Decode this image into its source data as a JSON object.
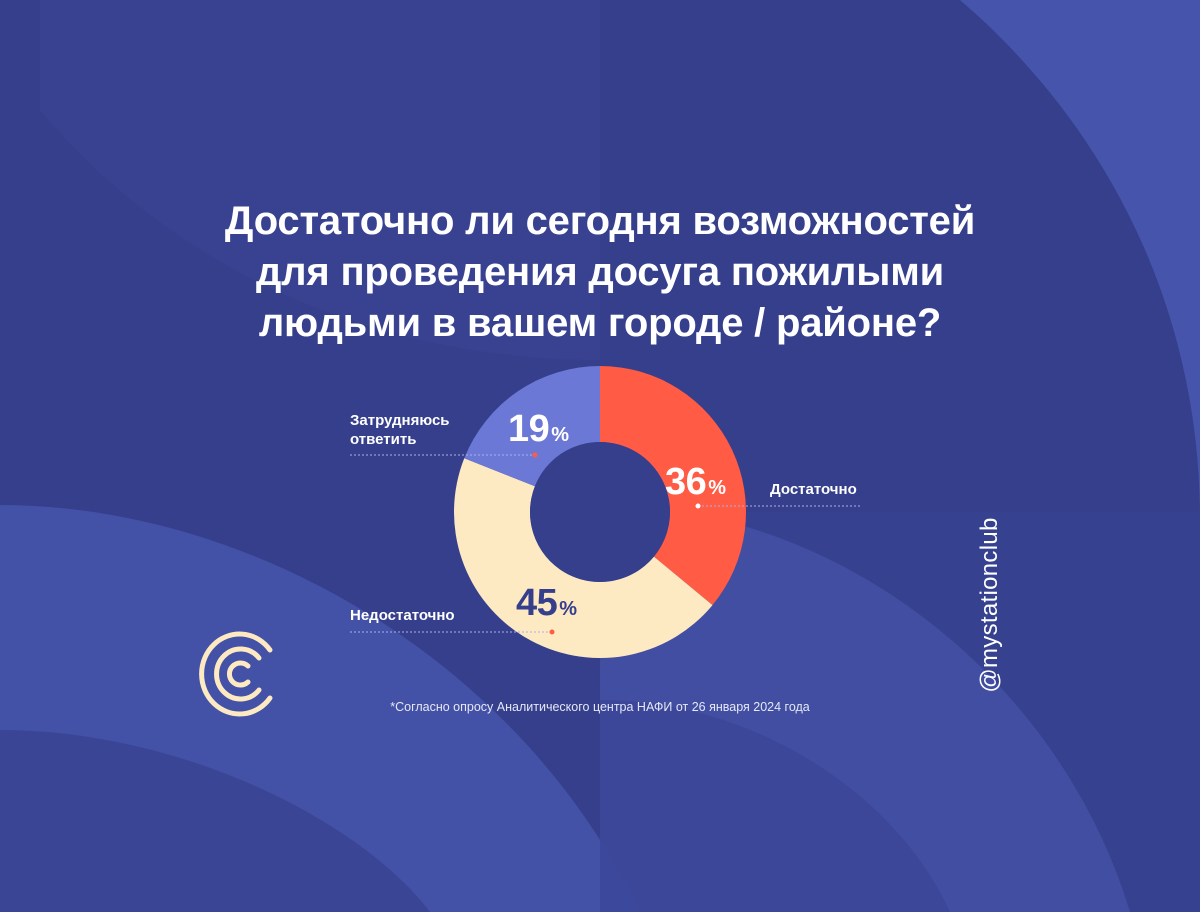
{
  "title_lines": [
    "Достаточно ли сегодня возможностей",
    "для проведения досуга пожилыми",
    "людьми в вашем городе / районе?"
  ],
  "chart_data": {
    "type": "pie",
    "title": "Достаточно ли сегодня возможностей для проведения досуга пожилыми людьми в вашем городе / районе?",
    "donut": true,
    "categories": [
      "Достаточно",
      "Недостаточно",
      "Затрудняюсь ответить"
    ],
    "values": [
      36,
      45,
      19
    ],
    "value_labels": [
      "36%",
      "45%",
      "19%"
    ],
    "units": "%",
    "colors": [
      "#ff5b45",
      "#fde9c2",
      "#6b78d5"
    ]
  },
  "labels": {
    "sufficient": "Достаточно",
    "insufficient": "Недостаточно",
    "hard_line1": "Затрудняюсь",
    "hard_line2": "ответить"
  },
  "percents": {
    "sufficient": "36",
    "insufficient": "45",
    "hard": "19",
    "sign": "%"
  },
  "footnote": "*Согласно опросу Аналитического центра НАФИ от 26 января 2024 года",
  "handle": "@mystationclub",
  "logo_icon": "station-logo-icon",
  "colors": {
    "background": "#353f8c",
    "accent_red": "#ff5b45",
    "cream": "#fde9c2",
    "periwinkle": "#6b78d5"
  }
}
